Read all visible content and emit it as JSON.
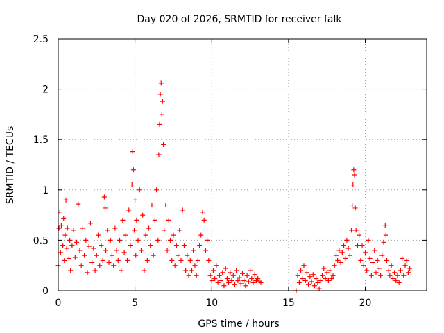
{
  "chart_data": {
    "type": "scatter",
    "title": "Day 020 of 2026, SRMTID for receiver falk",
    "xlabel": "GPS time / hours",
    "ylabel": "SRMTID / TECUs",
    "xlim": [
      0,
      24
    ],
    "ylim": [
      0,
      2.5
    ],
    "x_ticks": [
      {
        "value": 0,
        "label": "0"
      },
      {
        "value": 5,
        "label": "5"
      },
      {
        "value": 10,
        "label": "10"
      },
      {
        "value": 15,
        "label": "15"
      },
      {
        "value": 20,
        "label": "20"
      }
    ],
    "y_ticks": [
      {
        "value": 0,
        "label": "0"
      },
      {
        "value": 0.5,
        "label": "0.5"
      },
      {
        "value": 1,
        "label": "1"
      },
      {
        "value": 1.5,
        "label": "1.5"
      },
      {
        "value": 2,
        "label": "2"
      },
      {
        "value": 2.5,
        "label": "2.5"
      }
    ],
    "grid": true,
    "marker": "+",
    "series": [
      {
        "name": "SRMTID",
        "color": "#ff0000",
        "points": [
          [
            0.0,
            0.25
          ],
          [
            0.05,
            0.62
          ],
          [
            0.1,
            0.78
          ],
          [
            0.15,
            0.38
          ],
          [
            0.2,
            0.65
          ],
          [
            0.3,
            0.45
          ],
          [
            0.35,
            0.72
          ],
          [
            0.4,
            0.3
          ],
          [
            0.45,
            0.55
          ],
          [
            0.5,
            0.9
          ],
          [
            0.55,
            0.42
          ],
          [
            0.6,
            0.62
          ],
          [
            0.7,
            0.32
          ],
          [
            0.75,
            0.5
          ],
          [
            0.8,
            0.2
          ],
          [
            0.9,
            0.45
          ],
          [
            1.0,
            0.6
          ],
          [
            1.1,
            0.33
          ],
          [
            1.2,
            0.48
          ],
          [
            1.3,
            0.86
          ],
          [
            1.4,
            0.4
          ],
          [
            1.5,
            0.25
          ],
          [
            1.6,
            0.62
          ],
          [
            1.7,
            0.35
          ],
          [
            1.8,
            0.5
          ],
          [
            1.9,
            0.18
          ],
          [
            2.0,
            0.44
          ],
          [
            2.1,
            0.67
          ],
          [
            2.2,
            0.28
          ],
          [
            2.3,
            0.42
          ],
          [
            2.4,
            0.2
          ],
          [
            2.5,
            0.35
          ],
          [
            2.6,
            0.55
          ],
          [
            2.7,
            0.25
          ],
          [
            2.8,
            0.45
          ],
          [
            2.9,
            0.3
          ],
          [
            3.0,
            0.93
          ],
          [
            3.05,
            0.82
          ],
          [
            3.1,
            0.4
          ],
          [
            3.2,
            0.6
          ],
          [
            3.3,
            0.28
          ],
          [
            3.4,
            0.5
          ],
          [
            3.5,
            0.35
          ],
          [
            3.6,
            0.25
          ],
          [
            3.7,
            0.62
          ],
          [
            3.8,
            0.4
          ],
          [
            3.9,
            0.3
          ],
          [
            4.0,
            0.5
          ],
          [
            4.1,
            0.2
          ],
          [
            4.2,
            0.7
          ],
          [
            4.3,
            0.38
          ],
          [
            4.4,
            0.55
          ],
          [
            4.5,
            0.3
          ],
          [
            4.6,
            0.8
          ],
          [
            4.7,
            0.45
          ],
          [
            4.8,
            1.05
          ],
          [
            4.85,
            1.38
          ],
          [
            4.9,
            1.2
          ],
          [
            4.95,
            0.6
          ],
          [
            5.0,
            0.9
          ],
          [
            5.05,
            0.35
          ],
          [
            5.1,
            0.7
          ],
          [
            5.2,
            0.5
          ],
          [
            5.3,
            1.0
          ],
          [
            5.4,
            0.4
          ],
          [
            5.5,
            0.75
          ],
          [
            5.6,
            0.2
          ],
          [
            5.7,
            0.55
          ],
          [
            5.8,
            0.3
          ],
          [
            5.9,
            0.62
          ],
          [
            6.0,
            0.45
          ],
          [
            6.1,
            0.85
          ],
          [
            6.2,
            0.35
          ],
          [
            6.3,
            0.7
          ],
          [
            6.4,
            1.0
          ],
          [
            6.5,
            0.5
          ],
          [
            6.55,
            1.35
          ],
          [
            6.6,
            1.65
          ],
          [
            6.65,
            1.95
          ],
          [
            6.7,
            2.06
          ],
          [
            6.75,
            1.75
          ],
          [
            6.8,
            1.88
          ],
          [
            6.85,
            1.45
          ],
          [
            6.9,
            0.6
          ],
          [
            7.0,
            0.85
          ],
          [
            7.1,
            0.4
          ],
          [
            7.2,
            0.7
          ],
          [
            7.3,
            0.5
          ],
          [
            7.4,
            0.3
          ],
          [
            7.5,
            0.55
          ],
          [
            7.6,
            0.25
          ],
          [
            7.7,
            0.45
          ],
          [
            7.8,
            0.35
          ],
          [
            7.9,
            0.6
          ],
          [
            8.0,
            0.3
          ],
          [
            8.1,
            0.8
          ],
          [
            8.2,
            0.45
          ],
          [
            8.3,
            0.2
          ],
          [
            8.4,
            0.35
          ],
          [
            8.5,
            0.15
          ],
          [
            8.6,
            0.3
          ],
          [
            8.7,
            0.2
          ],
          [
            8.8,
            0.4
          ],
          [
            8.9,
            0.25
          ],
          [
            9.0,
            0.15
          ],
          [
            9.1,
            0.3
          ],
          [
            9.2,
            0.45
          ],
          [
            9.3,
            0.55
          ],
          [
            9.4,
            0.78
          ],
          [
            9.5,
            0.7
          ],
          [
            9.6,
            0.4
          ],
          [
            9.7,
            0.5
          ],
          [
            9.8,
            0.3
          ],
          [
            9.9,
            0.15
          ],
          [
            10.0,
            0.1
          ],
          [
            10.1,
            0.2
          ],
          [
            10.2,
            0.12
          ],
          [
            10.3,
            0.25
          ],
          [
            10.4,
            0.08
          ],
          [
            10.5,
            0.15
          ],
          [
            10.6,
            0.1
          ],
          [
            10.7,
            0.18
          ],
          [
            10.8,
            0.05
          ],
          [
            10.9,
            0.22
          ],
          [
            11.0,
            0.12
          ],
          [
            11.1,
            0.08
          ],
          [
            11.2,
            0.18
          ],
          [
            11.3,
            0.1
          ],
          [
            11.4,
            0.15
          ],
          [
            11.5,
            0.06
          ],
          [
            11.6,
            0.2
          ],
          [
            11.7,
            0.1
          ],
          [
            11.8,
            0.13
          ],
          [
            11.9,
            0.07
          ],
          [
            12.0,
            0.17
          ],
          [
            12.1,
            0.1
          ],
          [
            12.2,
            0.05
          ],
          [
            12.3,
            0.15
          ],
          [
            12.4,
            0.09
          ],
          [
            12.5,
            0.2
          ],
          [
            12.6,
            0.12
          ],
          [
            12.7,
            0.08
          ],
          [
            12.8,
            0.16
          ],
          [
            12.9,
            0.1
          ],
          [
            13.0,
            0.12
          ],
          [
            13.1,
            0.09
          ],
          [
            13.2,
            0.08
          ],
          [
            15.5,
            0.0
          ],
          [
            15.6,
            0.15
          ],
          [
            15.7,
            0.08
          ],
          [
            15.8,
            0.2
          ],
          [
            15.9,
            0.12
          ],
          [
            16.0,
            0.25
          ],
          [
            16.1,
            0.1
          ],
          [
            16.2,
            0.18
          ],
          [
            16.3,
            0.06
          ],
          [
            16.4,
            0.14
          ],
          [
            16.5,
            0.09
          ],
          [
            16.6,
            0.16
          ],
          [
            16.7,
            0.05
          ],
          [
            16.8,
            0.12
          ],
          [
            16.9,
            0.08
          ],
          [
            17.0,
            0.02
          ],
          [
            17.1,
            0.1
          ],
          [
            17.2,
            0.15
          ],
          [
            17.3,
            0.22
          ],
          [
            17.4,
            0.12
          ],
          [
            17.5,
            0.18
          ],
          [
            17.6,
            0.1
          ],
          [
            17.7,
            0.2
          ],
          [
            17.8,
            0.12
          ],
          [
            17.9,
            0.15
          ],
          [
            18.0,
            0.25
          ],
          [
            18.1,
            0.35
          ],
          [
            18.2,
            0.3
          ],
          [
            18.3,
            0.4
          ],
          [
            18.4,
            0.28
          ],
          [
            18.5,
            0.38
          ],
          [
            18.6,
            0.45
          ],
          [
            18.7,
            0.32
          ],
          [
            18.8,
            0.5
          ],
          [
            18.9,
            0.42
          ],
          [
            19.0,
            0.35
          ],
          [
            19.1,
            0.6
          ],
          [
            19.15,
            0.85
          ],
          [
            19.2,
            1.05
          ],
          [
            19.25,
            1.2
          ],
          [
            19.3,
            1.15
          ],
          [
            19.35,
            0.82
          ],
          [
            19.4,
            0.6
          ],
          [
            19.5,
            0.45
          ],
          [
            19.6,
            0.55
          ],
          [
            19.7,
            0.3
          ],
          [
            19.8,
            0.45
          ],
          [
            19.9,
            0.25
          ],
          [
            20.0,
            0.38
          ],
          [
            20.1,
            0.2
          ],
          [
            20.2,
            0.5
          ],
          [
            20.3,
            0.32
          ],
          [
            20.4,
            0.15
          ],
          [
            20.5,
            0.28
          ],
          [
            20.6,
            0.4
          ],
          [
            20.7,
            0.18
          ],
          [
            20.8,
            0.3
          ],
          [
            20.9,
            0.22
          ],
          [
            21.0,
            0.15
          ],
          [
            21.1,
            0.35
          ],
          [
            21.2,
            0.48
          ],
          [
            21.3,
            0.65
          ],
          [
            21.35,
            0.55
          ],
          [
            21.4,
            0.3
          ],
          [
            21.5,
            0.2
          ],
          [
            21.6,
            0.15
          ],
          [
            21.7,
            0.25
          ],
          [
            21.8,
            0.12
          ],
          [
            21.9,
            0.18
          ],
          [
            22.0,
            0.1
          ],
          [
            22.1,
            0.15
          ],
          [
            22.2,
            0.08
          ],
          [
            22.3,
            0.2
          ],
          [
            22.4,
            0.32
          ],
          [
            22.5,
            0.15
          ],
          [
            22.6,
            0.25
          ],
          [
            22.7,
            0.3
          ],
          [
            22.8,
            0.18
          ],
          [
            22.9,
            0.22
          ]
        ]
      }
    ]
  }
}
